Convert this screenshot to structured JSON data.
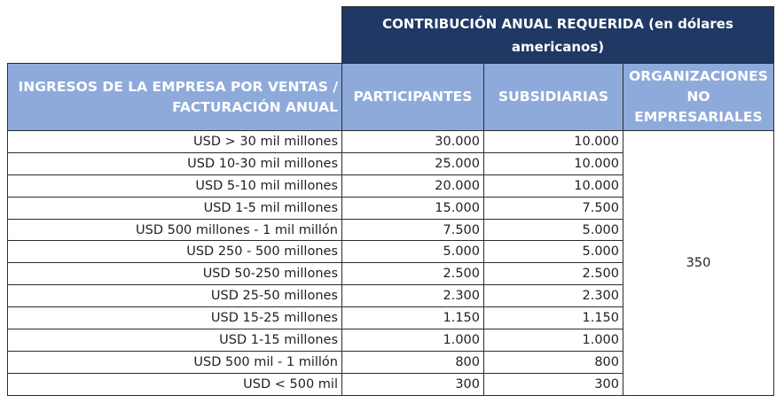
{
  "super_header": "CONTRIBUCIÓN ANUAL REQUERIDA (en dólares americanos)",
  "headers": {
    "revenue": "INGRESOS DE LA EMPRESA POR VENTAS / FACTURACIÓN ANUAL",
    "participants": "PARTICIPANTES",
    "subsidiaries": "SUBSIDIARIAS",
    "non_business": "ORGANIZACIONES NO EMPRESARIALES"
  },
  "rows": [
    {
      "range": "USD > 30 mil millones",
      "participants": "30.000",
      "subsidiaries": "10.000"
    },
    {
      "range": "USD 10-30 mil millones",
      "participants": "25.000",
      "subsidiaries": "10.000"
    },
    {
      "range": "USD 5-10 mil millones",
      "participants": "20.000",
      "subsidiaries": "10.000"
    },
    {
      "range": "USD 1-5 mil millones",
      "participants": "15.000",
      "subsidiaries": "7.500"
    },
    {
      "range": "USD 500 millones - 1 mil millón",
      "participants": "7.500",
      "subsidiaries": "5.000"
    },
    {
      "range": "USD 250 - 500 millones",
      "participants": "5.000",
      "subsidiaries": "5.000"
    },
    {
      "range": "USD 50-250 millones",
      "participants": "2.500",
      "subsidiaries": "2.500"
    },
    {
      "range": "USD 25-50 millones",
      "participants": "2.300",
      "subsidiaries": "2.300"
    },
    {
      "range": "USD 15-25 millones",
      "participants": "1.150",
      "subsidiaries": "1.150"
    },
    {
      "range": "USD 1-15 millones",
      "participants": "1.000",
      "subsidiaries": "1.000"
    },
    {
      "range": "USD 500 mil - 1 millón",
      "participants": "800",
      "subsidiaries": "800"
    },
    {
      "range": "USD < 500 mil",
      "participants": "300",
      "subsidiaries": "300"
    }
  ],
  "non_business_value": "350",
  "colors": {
    "dark_header": "#1f3864",
    "light_header": "#8eaadb",
    "header_text": "#ffffff"
  }
}
